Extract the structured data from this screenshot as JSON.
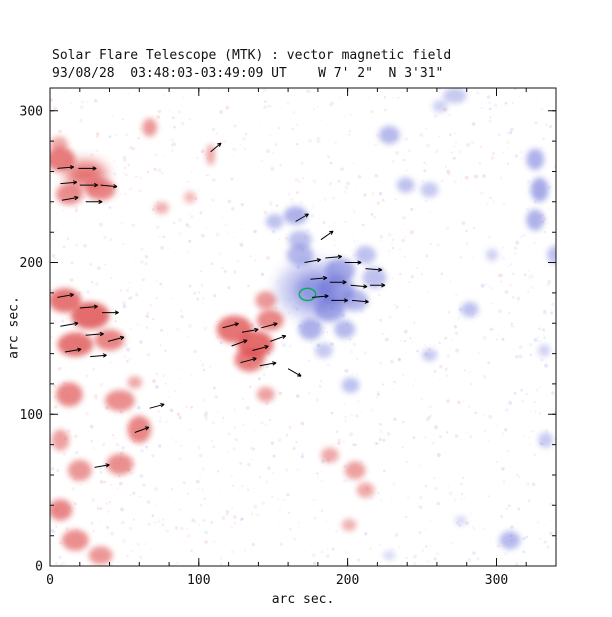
{
  "header": {
    "title": "Solar Flare Telescope (MTK) : vector magnetic field",
    "subtitle": "93/08/28  03:48:03-03:49:09 UT    W 7' 2\"  N 3'31\""
  },
  "chart_data": {
    "type": "heatmap",
    "description": "Vector magnetogram: red = negative polarity flux, blue = positive polarity flux, black segments = transverse field vectors, green contour = flare site",
    "title": "Solar Flare Telescope (MTK) : vector magnetic field",
    "subtitle": "93/08/28  03:48:03-03:49:09 UT    W 7' 2\"  N 3'31\"",
    "xlabel": "arc sec.",
    "ylabel": "arc sec.",
    "xlim": [
      0,
      340
    ],
    "ylim": [
      0,
      315
    ],
    "xticks": [
      0,
      100,
      200,
      300
    ],
    "yticks": [
      0,
      100,
      200,
      300
    ],
    "minor_tick_step": 20,
    "grid": false,
    "colors": {
      "negative": "#e05353",
      "positive": "#5f66d6",
      "vector": "#000000",
      "contour": "#00b050",
      "axis": "#111111",
      "background": "#ffffff"
    },
    "blob_format": "x, y, rx, ry, opacity (data units: arc sec)",
    "blobs_negative": [
      [
        7,
        268,
        10,
        8,
        0.75
      ],
      [
        24,
        258,
        14,
        9,
        0.8
      ],
      [
        34,
        248,
        10,
        7,
        0.7
      ],
      [
        13,
        245,
        9,
        7,
        0.65
      ],
      [
        6,
        278,
        6,
        5,
        0.5
      ],
      [
        67,
        289,
        5,
        6,
        0.6
      ],
      [
        108,
        271,
        3,
        7,
        0.5
      ],
      [
        10,
        175,
        11,
        8,
        0.8
      ],
      [
        27,
        165,
        13,
        9,
        0.85
      ],
      [
        17,
        146,
        12,
        8,
        0.8
      ],
      [
        40,
        149,
        10,
        7,
        0.7
      ],
      [
        13,
        113,
        9,
        8,
        0.7
      ],
      [
        47,
        109,
        10,
        7,
        0.65
      ],
      [
        60,
        90,
        8,
        9,
        0.7
      ],
      [
        47,
        67,
        9,
        7,
        0.65
      ],
      [
        20,
        63,
        8,
        7,
        0.6
      ],
      [
        7,
        83,
        6,
        7,
        0.55
      ],
      [
        7,
        37,
        8,
        7,
        0.7
      ],
      [
        17,
        17,
        9,
        7,
        0.65
      ],
      [
        34,
        7,
        8,
        6,
        0.6
      ],
      [
        124,
        156,
        12,
        9,
        0.8
      ],
      [
        138,
        146,
        12,
        9,
        0.85
      ],
      [
        148,
        162,
        9,
        7,
        0.7
      ],
      [
        134,
        136,
        10,
        8,
        0.75
      ],
      [
        145,
        175,
        7,
        6,
        0.6
      ],
      [
        145,
        113,
        6,
        5,
        0.55
      ],
      [
        188,
        73,
        6,
        5,
        0.5
      ],
      [
        205,
        63,
        7,
        6,
        0.55
      ],
      [
        212,
        50,
        6,
        5,
        0.5
      ],
      [
        201,
        27,
        5,
        4,
        0.45
      ],
      [
        75,
        236,
        5,
        4,
        0.45
      ],
      [
        94,
        243,
        4,
        4,
        0.4
      ],
      [
        57,
        121,
        5,
        4,
        0.5
      ]
    ],
    "blobs_positive": [
      [
        178,
        182,
        26,
        20,
        0.3
      ],
      [
        178,
        182,
        14,
        11,
        0.55
      ],
      [
        195,
        195,
        10,
        8,
        0.5
      ],
      [
        168,
        205,
        9,
        7,
        0.45
      ],
      [
        188,
        169,
        10,
        8,
        0.5
      ],
      [
        205,
        175,
        9,
        7,
        0.45
      ],
      [
        175,
        156,
        8,
        7,
        0.5
      ],
      [
        198,
        156,
        7,
        6,
        0.45
      ],
      [
        212,
        205,
        7,
        6,
        0.4
      ],
      [
        165,
        231,
        8,
        6,
        0.5
      ],
      [
        151,
        227,
        6,
        5,
        0.4
      ],
      [
        228,
        284,
        7,
        6,
        0.45
      ],
      [
        239,
        251,
        6,
        5,
        0.4
      ],
      [
        255,
        248,
        6,
        5,
        0.35
      ],
      [
        326,
        268,
        6,
        7,
        0.5
      ],
      [
        329,
        248,
        6,
        8,
        0.55
      ],
      [
        326,
        228,
        6,
        7,
        0.5
      ],
      [
        282,
        169,
        6,
        5,
        0.4
      ],
      [
        255,
        139,
        5,
        4,
        0.35
      ],
      [
        202,
        119,
        6,
        5,
        0.4
      ],
      [
        309,
        17,
        7,
        6,
        0.45
      ],
      [
        333,
        83,
        5,
        5,
        0.35
      ],
      [
        272,
        310,
        8,
        5,
        0.35
      ],
      [
        168,
        215,
        8,
        6,
        0.4
      ],
      [
        218,
        190,
        8,
        7,
        0.4
      ],
      [
        192,
        182,
        12,
        9,
        0.45
      ],
      [
        297,
        205,
        4,
        4,
        0.3
      ],
      [
        184,
        142,
        6,
        5,
        0.35
      ],
      [
        262,
        303,
        5,
        4,
        0.3
      ],
      [
        339,
        205,
        5,
        6,
        0.4
      ],
      [
        332,
        142,
        4,
        4,
        0.3
      ],
      [
        276,
        30,
        4,
        3,
        0.25
      ],
      [
        228,
        7,
        4,
        3,
        0.25
      ]
    ],
    "vector_format": "x, y, angle_deg (0 = east, CCW positive), length (arc sec)",
    "vectors": [
      [
        5,
        262,
        5,
        11
      ],
      [
        19,
        262,
        0,
        12
      ],
      [
        7,
        252,
        5,
        11
      ],
      [
        20,
        251,
        0,
        12
      ],
      [
        34,
        251,
        -5,
        11
      ],
      [
        8,
        241,
        10,
        11
      ],
      [
        24,
        240,
        0,
        11
      ],
      [
        5,
        177,
        10,
        11
      ],
      [
        20,
        170,
        5,
        12
      ],
      [
        35,
        167,
        0,
        11
      ],
      [
        7,
        158,
        10,
        12
      ],
      [
        24,
        152,
        5,
        12
      ],
      [
        39,
        148,
        15,
        11
      ],
      [
        10,
        141,
        10,
        11
      ],
      [
        27,
        138,
        5,
        11
      ],
      [
        57,
        88,
        20,
        10
      ],
      [
        30,
        65,
        10,
        10
      ],
      [
        67,
        104,
        15,
        10
      ],
      [
        116,
        157,
        15,
        11
      ],
      [
        129,
        154,
        10,
        11
      ],
      [
        142,
        157,
        15,
        11
      ],
      [
        122,
        145,
        20,
        11
      ],
      [
        136,
        142,
        15,
        11
      ],
      [
        148,
        148,
        20,
        11
      ],
      [
        128,
        134,
        15,
        11
      ],
      [
        141,
        132,
        10,
        11
      ],
      [
        160,
        130,
        -30,
        10
      ],
      [
        171,
        200,
        10,
        11
      ],
      [
        185,
        203,
        5,
        11
      ],
      [
        198,
        200,
        0,
        11
      ],
      [
        212,
        196,
        -5,
        11
      ],
      [
        175,
        189,
        5,
        11
      ],
      [
        188,
        187,
        0,
        11
      ],
      [
        202,
        185,
        -5,
        11
      ],
      [
        215,
        185,
        0,
        10
      ],
      [
        176,
        177,
        5,
        11
      ],
      [
        189,
        175,
        0,
        11
      ],
      [
        203,
        175,
        -5,
        11
      ],
      [
        182,
        215,
        35,
        10
      ],
      [
        165,
        227,
        30,
        10
      ],
      [
        108,
        273,
        40,
        9
      ]
    ],
    "contour_format": "x, y, rx, ry",
    "contours": [
      [
        173,
        179,
        5.5,
        4
      ]
    ],
    "noise": {
      "seed": 19930828,
      "count": 1200,
      "min_r": 0.6,
      "max_r": 2.0,
      "min_opacity": 0.05,
      "max_opacity": 0.16,
      "blue_fraction_left": 0.25,
      "blue_fraction_right": 0.8
    }
  }
}
